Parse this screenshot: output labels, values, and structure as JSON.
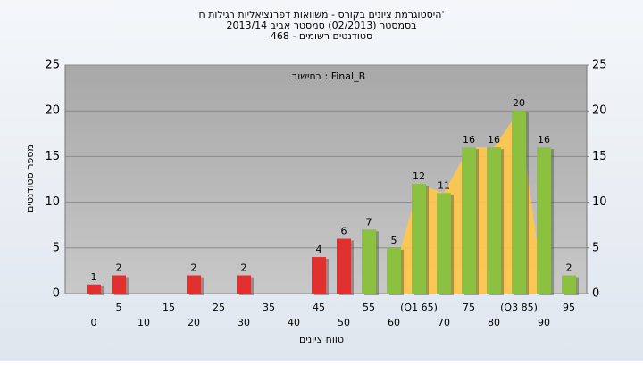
{
  "chart_data": {
    "type": "bar",
    "title": "היסטוגרמת ציונים בקורס - משוואות דפרנציאליות רגילות ח'",
    "subtitle": "בסמסטר  (02/2013)  סמסטר אביב 2013/14",
    "subtitle2": "סטודנטים רשומים - 468",
    "annotation": "בחישוב : Final_B",
    "x_label": "טווח ציונים",
    "y_label": "מספר סטודנטים",
    "categories": [
      "0",
      "5",
      "10",
      "15",
      "20",
      "25",
      "30",
      "35",
      "40",
      "45",
      "50",
      "55",
      "60",
      "(Q1 65)",
      "70",
      "75",
      "80",
      "(Q3 85)",
      "90",
      "95"
    ],
    "values": [
      1,
      2,
      0,
      0,
      2,
      0,
      2,
      0,
      0,
      4,
      6,
      7,
      5,
      12,
      11,
      16,
      16,
      20,
      16,
      2
    ],
    "colors": [
      "#e03030",
      "#e03030",
      "#e03030",
      "#e03030",
      "#e03030",
      "#e03030",
      "#e03030",
      "#e03030",
      "#e03030",
      "#e03030",
      "#e03030",
      "#8cc040",
      "#8cc040",
      "#8cc040",
      "#8cc040",
      "#8cc040",
      "#8cc040",
      "#8cc040",
      "#8cc040",
      "#8cc040"
    ],
    "band_color": "#ffc84a",
    "ylim": [
      0,
      25
    ],
    "yticks": [
      0,
      5,
      10,
      15,
      20,
      25
    ],
    "y2lim": [
      0,
      25
    ],
    "y2ticks": [
      0,
      5,
      10,
      15,
      20,
      25
    ],
    "grid": true
  }
}
